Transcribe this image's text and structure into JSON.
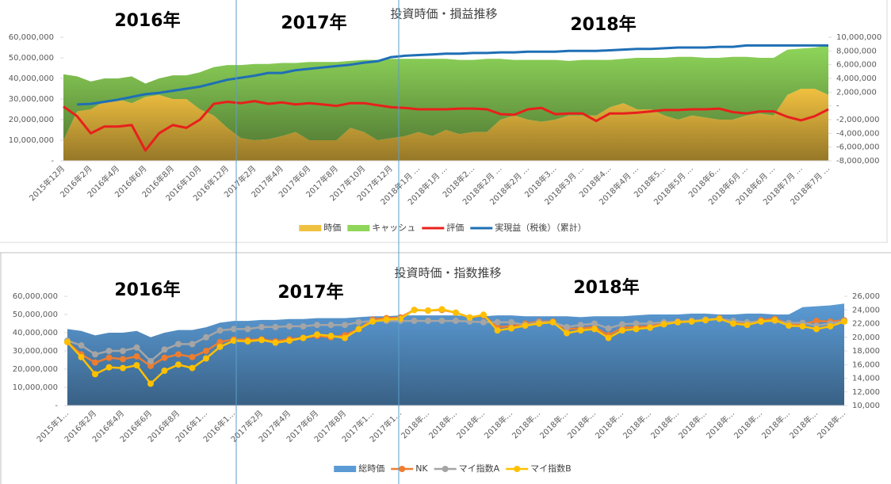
{
  "chart_data": [
    {
      "type": "combo",
      "title": "投資時価・損益推移",
      "stacked": true,
      "annotations": [
        "2016年",
        "2017年",
        "2018年"
      ],
      "categories": [
        "2015年12月",
        null,
        "2016年2月",
        null,
        "2016年4月",
        null,
        "2016年6月",
        null,
        "2016年8月",
        null,
        "2016年10月",
        null,
        "2016年12月",
        null,
        "2017年2月",
        null,
        "2017年4月",
        null,
        "2017年6月",
        null,
        "2017年8月",
        null,
        "2017年10月",
        null,
        "2017年12月",
        null,
        "2018年1月 …",
        null,
        "2018年1月 …",
        null,
        "2018年2…",
        null,
        "2018年2月 …",
        null,
        "2018年2月 …",
        null,
        "2018年3…",
        null,
        "2018年3月 …",
        null,
        "2018年4…",
        null,
        "2018年4月 …",
        null,
        "2018年5…",
        null,
        "2018年5月 …",
        null,
        "2018年6…",
        null,
        "2018年6月 …",
        null,
        "2018年6月 …",
        null,
        "2018年7月 …",
        null,
        "2018年7月 …"
      ],
      "ylim": [
        0,
        60000000
      ],
      "yticks": [
        {
          "value": 0,
          "label": "-"
        },
        {
          "value": 10000000,
          "label": "10,000,000"
        },
        {
          "value": 20000000,
          "label": "20,000,000"
        },
        {
          "value": 30000000,
          "label": "30,000,000"
        },
        {
          "value": 40000000,
          "label": "40,000,000"
        },
        {
          "value": 50000000,
          "label": "50,000,000"
        },
        {
          "value": 60000000,
          "label": "60,000,000"
        }
      ],
      "y2lim": [
        -8000000,
        10000000
      ],
      "y2ticks": [
        {
          "value": -8000000,
          "label": "-8,000,000"
        },
        {
          "value": -6000000,
          "label": "-6,000,000"
        },
        {
          "value": -4000000,
          "label": "-4,000,000"
        },
        {
          "value": -2000000,
          "label": "-2,000,000"
        },
        {
          "value": 0,
          "label": "-"
        },
        {
          "value": 2000000,
          "label": "2,000,000"
        },
        {
          "value": 4000000,
          "label": "4,000,000"
        },
        {
          "value": 6000000,
          "label": "6,000,000"
        },
        {
          "value": 8000000,
          "label": "8,000,000"
        },
        {
          "value": 10000000,
          "label": "10,000,000"
        }
      ],
      "series": [
        {
          "name": "時価",
          "kind": "area",
          "color": "#f0c040",
          "values": [
            10000000,
            24000000,
            25000000,
            29000000,
            30000000,
            28000000,
            31000000,
            32000000,
            30000000,
            30000000,
            25000000,
            22000000,
            16000000,
            11000000,
            10000000,
            10500000,
            12000000,
            14000000,
            10000000,
            10000000,
            10000000,
            16000000,
            14000000,
            10000000,
            11000000,
            12000000,
            14000000,
            12000000,
            15000000,
            13000000,
            14000000,
            14000000,
            20000000,
            22000000,
            20000000,
            19000000,
            20000000,
            22000000,
            22000000,
            22000000,
            26000000,
            28000000,
            25000000,
            25000000,
            22000000,
            20000000,
            22000000,
            21000000,
            20000000,
            20000000,
            22000000,
            23000000,
            22000000,
            32000000,
            35000000,
            35000000,
            32000000
          ]
        },
        {
          "name": "キャッシュ",
          "kind": "area",
          "color": "#8fd65a",
          "values": [
            32000000,
            17000000,
            13500000,
            11000000,
            10000000,
            13000000,
            6500000,
            8000000,
            11500000,
            11500000,
            18000000,
            23500000,
            30500000,
            35500000,
            37000000,
            36500000,
            35500000,
            33500000,
            38000000,
            38000000,
            38000000,
            32500000,
            35000000,
            39000000,
            38500000,
            37500000,
            35500000,
            37500000,
            34500000,
            36000000,
            35000000,
            35500000,
            29500000,
            27000000,
            29000000,
            30000000,
            29000000,
            26500000,
            27000000,
            27000000,
            23000000,
            21500000,
            25000000,
            25000000,
            28000000,
            30500000,
            28500000,
            29000000,
            30000000,
            30500000,
            28500000,
            27000000,
            28000000,
            22000000,
            19500000,
            20000000,
            24000000
          ]
        },
        {
          "name": "評価",
          "kind": "line",
          "axis": "y2",
          "color": "#e8201c",
          "values": [
            -100000,
            -1500000,
            -4000000,
            -3000000,
            -3000000,
            -2800000,
            -6500000,
            -4000000,
            -2800000,
            -3200000,
            -2000000,
            300000,
            600000,
            400000,
            700000,
            300000,
            500000,
            200000,
            400000,
            200000,
            0,
            400000,
            400000,
            100000,
            -200000,
            -300000,
            -500000,
            -500000,
            -500000,
            -400000,
            -400000,
            -500000,
            -1200000,
            -1300000,
            -500000,
            -300000,
            -1200000,
            -1100000,
            -1100000,
            -2200000,
            -1100000,
            -1100000,
            -1000000,
            -800000,
            -600000,
            -600000,
            -500000,
            -500000,
            -400000,
            -900000,
            -1100000,
            -800000,
            -800000,
            -1600000,
            -2100000,
            -1500000,
            -500000
          ]
        },
        {
          "name": "実現益（税後）（累計）",
          "kind": "line",
          "axis": "y2",
          "color": "#1f6fb5",
          "values": [
            null,
            200000,
            300000,
            600000,
            900000,
            1300000,
            1700000,
            1900000,
            2200000,
            2500000,
            2800000,
            3300000,
            3800000,
            4100000,
            4400000,
            4800000,
            4800000,
            5200000,
            5400000,
            5600000,
            5800000,
            6000000,
            6300000,
            6500000,
            7100000,
            7300000,
            7400000,
            7500000,
            7600000,
            7600000,
            7700000,
            7700000,
            7800000,
            7800000,
            7900000,
            7900000,
            7900000,
            8000000,
            8000000,
            8000000,
            8100000,
            8200000,
            8300000,
            8300000,
            8400000,
            8500000,
            8500000,
            8500000,
            8600000,
            8600000,
            8800000,
            8800000,
            8800000,
            8800000,
            8800000,
            8800000,
            8800000
          ]
        }
      ]
    },
    {
      "type": "combo",
      "title": "投資時価・指数推移",
      "markers": true,
      "annotations": [
        "2016年",
        "2017年",
        "2018年"
      ],
      "categories": [
        "2015年1…",
        null,
        "2016年2月",
        null,
        "2016年4月",
        null,
        "2016年6月",
        null,
        "2016年8月",
        null,
        "2016年1…",
        null,
        "2016年1…",
        null,
        "2017年2月",
        null,
        "2017年4月",
        null,
        "2017年6月",
        null,
        "2017年8月",
        null,
        "2017年1…",
        null,
        "2017年1…",
        null,
        "2018年…",
        null,
        "2018年…",
        null,
        "2018年…",
        null,
        "2018年…",
        null,
        "2018年…",
        null,
        "2018年…",
        null,
        "2018年…",
        null,
        "2018年…",
        null,
        "2018年…",
        null,
        "2018年…",
        null,
        "2018年…",
        null,
        "2018年…",
        null,
        "2018年…",
        null,
        "2018年…",
        null,
        "2018年…",
        null,
        "2018年…"
      ],
      "ylim": [
        0,
        60000000
      ],
      "yticks": [
        {
          "value": 0,
          "label": "-"
        },
        {
          "value": 10000000,
          "label": "10,000,000"
        },
        {
          "value": 20000000,
          "label": "20,000,000"
        },
        {
          "value": 30000000,
          "label": "30,000,000"
        },
        {
          "value": 40000000,
          "label": "40,000,000"
        },
        {
          "value": 50000000,
          "label": "50,000,000"
        },
        {
          "value": 60000000,
          "label": "60,000,000"
        }
      ],
      "y2lim": [
        10000,
        26000
      ],
      "y2ticks": [
        {
          "value": 10000,
          "label": "10,000"
        },
        {
          "value": 12000,
          "label": "12,000"
        },
        {
          "value": 14000,
          "label": "14,000"
        },
        {
          "value": 16000,
          "label": "16,000"
        },
        {
          "value": 18000,
          "label": "18,000"
        },
        {
          "value": 20000,
          "label": "20,000"
        },
        {
          "value": 22000,
          "label": "22,000"
        },
        {
          "value": 24000,
          "label": "24,000"
        },
        {
          "value": 26000,
          "label": "26,000"
        }
      ],
      "series": [
        {
          "name": "総時価",
          "kind": "area",
          "color": "#5b9bd5",
          "values": [
            42000000,
            41000000,
            38500000,
            40000000,
            40000000,
            41000000,
            37500000,
            40000000,
            41500000,
            41500000,
            43000000,
            45500000,
            46500000,
            46500000,
            47000000,
            47000000,
            47500000,
            47500000,
            48000000,
            48000000,
            48000000,
            48500000,
            49000000,
            49000000,
            49500000,
            49500000,
            49500000,
            49500000,
            49500000,
            49000000,
            49000000,
            49500000,
            49500000,
            49000000,
            49000000,
            49000000,
            49000000,
            48500000,
            49000000,
            49000000,
            49000000,
            49500000,
            50000000,
            50000000,
            50000000,
            50500000,
            50500000,
            50000000,
            50000000,
            50500000,
            50500000,
            50000000,
            50000000,
            54000000,
            54500000,
            55000000,
            56000000
          ]
        },
        {
          "name": "NK",
          "kind": "line",
          "axis": "y2",
          "color": "#ed7d31",
          "values": [
            19300,
            17500,
            16300,
            17000,
            16800,
            17200,
            15800,
            17000,
            17500,
            17100,
            18000,
            19300,
            19700,
            19600,
            19700,
            19400,
            19700,
            19900,
            20200,
            20000,
            20300,
            21200,
            22600,
            22800,
            22900,
            24000,
            23900,
            24000,
            23600,
            22900,
            23200,
            21500,
            21600,
            22000,
            22300,
            22300,
            21200,
            21300,
            21500,
            20300,
            21400,
            21500,
            21600,
            22100,
            22300,
            22400,
            22500,
            22800,
            22200,
            22000,
            22500,
            22700,
            22000,
            21900,
            22400,
            22300,
            22500
          ]
        },
        {
          "name": "マイ指数A",
          "kind": "line",
          "axis": "y2",
          "color": "#a5a5a5",
          "values": [
            19500,
            18800,
            17500,
            18000,
            18000,
            18500,
            16500,
            18200,
            19000,
            19000,
            20000,
            21000,
            21200,
            21200,
            21500,
            21500,
            21600,
            21600,
            21800,
            21800,
            21800,
            22200,
            22400,
            22400,
            22400,
            22400,
            22400,
            22400,
            22400,
            22300,
            22200,
            22200,
            22200,
            21800,
            22200,
            22200,
            21500,
            21800,
            22000,
            21300,
            21900,
            22000,
            22000,
            22200,
            22300,
            22400,
            22600,
            22700,
            22400,
            22200,
            22300,
            22400,
            22100,
            22100,
            21700,
            22000,
            22400
          ]
        },
        {
          "name": "マイ指数B",
          "kind": "line",
          "axis": "y2",
          "color": "#ffc000",
          "values": [
            19300,
            17100,
            14600,
            15600,
            15500,
            15900,
            13200,
            15100,
            16000,
            15500,
            16900,
            18600,
            19500,
            19400,
            19600,
            19200,
            19500,
            19900,
            20400,
            20200,
            19900,
            21200,
            22300,
            22600,
            22700,
            24000,
            23900,
            24100,
            23600,
            22900,
            23300,
            21000,
            21300,
            21700,
            22000,
            22200,
            20600,
            21000,
            21200,
            19900,
            21000,
            21200,
            21400,
            21900,
            22200,
            22300,
            22500,
            22700,
            22000,
            21800,
            22300,
            22500,
            21700,
            21600,
            21200,
            21600,
            22300
          ]
        }
      ]
    }
  ]
}
